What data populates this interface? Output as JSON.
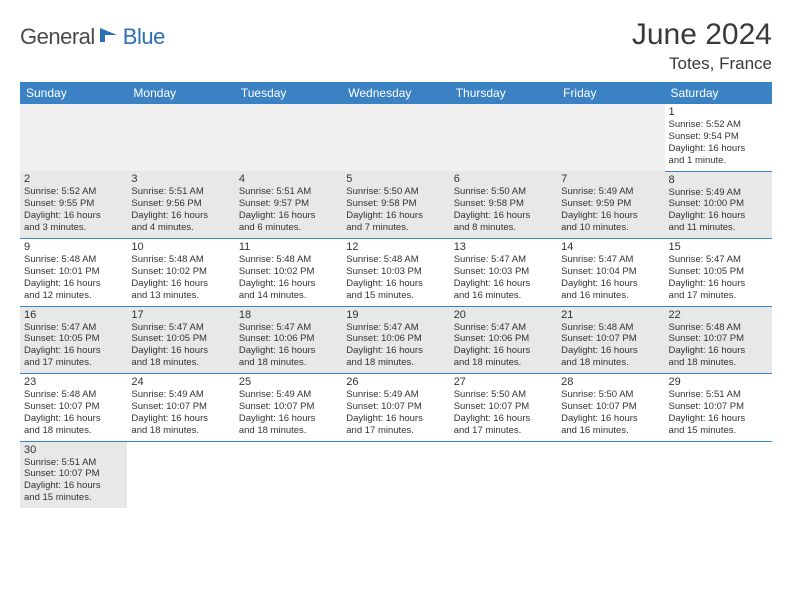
{
  "logo": {
    "part1": "General",
    "part2": "Blue"
  },
  "title": "June 2024",
  "location": "Totes, France",
  "weekdays": [
    "Sunday",
    "Monday",
    "Tuesday",
    "Wednesday",
    "Thursday",
    "Friday",
    "Saturday"
  ],
  "colors": {
    "header_bg": "#3b82c4",
    "header_text": "#ffffff",
    "gray_row": "#e8e8e8",
    "border": "#3b82c4",
    "logo_gray": "#4a4a4a",
    "logo_blue": "#2b6fb5"
  },
  "weeks": [
    [
      null,
      null,
      null,
      null,
      null,
      null,
      {
        "n": "1",
        "sr": "Sunrise: 5:52 AM",
        "ss": "Sunset: 9:54 PM",
        "dl1": "Daylight: 16 hours",
        "dl2": "and 1 minute."
      }
    ],
    [
      {
        "n": "2",
        "sr": "Sunrise: 5:52 AM",
        "ss": "Sunset: 9:55 PM",
        "dl1": "Daylight: 16 hours",
        "dl2": "and 3 minutes."
      },
      {
        "n": "3",
        "sr": "Sunrise: 5:51 AM",
        "ss": "Sunset: 9:56 PM",
        "dl1": "Daylight: 16 hours",
        "dl2": "and 4 minutes."
      },
      {
        "n": "4",
        "sr": "Sunrise: 5:51 AM",
        "ss": "Sunset: 9:57 PM",
        "dl1": "Daylight: 16 hours",
        "dl2": "and 6 minutes."
      },
      {
        "n": "5",
        "sr": "Sunrise: 5:50 AM",
        "ss": "Sunset: 9:58 PM",
        "dl1": "Daylight: 16 hours",
        "dl2": "and 7 minutes."
      },
      {
        "n": "6",
        "sr": "Sunrise: 5:50 AM",
        "ss": "Sunset: 9:58 PM",
        "dl1": "Daylight: 16 hours",
        "dl2": "and 8 minutes."
      },
      {
        "n": "7",
        "sr": "Sunrise: 5:49 AM",
        "ss": "Sunset: 9:59 PM",
        "dl1": "Daylight: 16 hours",
        "dl2": "and 10 minutes."
      },
      {
        "n": "8",
        "sr": "Sunrise: 5:49 AM",
        "ss": "Sunset: 10:00 PM",
        "dl1": "Daylight: 16 hours",
        "dl2": "and 11 minutes."
      }
    ],
    [
      {
        "n": "9",
        "sr": "Sunrise: 5:48 AM",
        "ss": "Sunset: 10:01 PM",
        "dl1": "Daylight: 16 hours",
        "dl2": "and 12 minutes."
      },
      {
        "n": "10",
        "sr": "Sunrise: 5:48 AM",
        "ss": "Sunset: 10:02 PM",
        "dl1": "Daylight: 16 hours",
        "dl2": "and 13 minutes."
      },
      {
        "n": "11",
        "sr": "Sunrise: 5:48 AM",
        "ss": "Sunset: 10:02 PM",
        "dl1": "Daylight: 16 hours",
        "dl2": "and 14 minutes."
      },
      {
        "n": "12",
        "sr": "Sunrise: 5:48 AM",
        "ss": "Sunset: 10:03 PM",
        "dl1": "Daylight: 16 hours",
        "dl2": "and 15 minutes."
      },
      {
        "n": "13",
        "sr": "Sunrise: 5:47 AM",
        "ss": "Sunset: 10:03 PM",
        "dl1": "Daylight: 16 hours",
        "dl2": "and 16 minutes."
      },
      {
        "n": "14",
        "sr": "Sunrise: 5:47 AM",
        "ss": "Sunset: 10:04 PM",
        "dl1": "Daylight: 16 hours",
        "dl2": "and 16 minutes."
      },
      {
        "n": "15",
        "sr": "Sunrise: 5:47 AM",
        "ss": "Sunset: 10:05 PM",
        "dl1": "Daylight: 16 hours",
        "dl2": "and 17 minutes."
      }
    ],
    [
      {
        "n": "16",
        "sr": "Sunrise: 5:47 AM",
        "ss": "Sunset: 10:05 PM",
        "dl1": "Daylight: 16 hours",
        "dl2": "and 17 minutes."
      },
      {
        "n": "17",
        "sr": "Sunrise: 5:47 AM",
        "ss": "Sunset: 10:05 PM",
        "dl1": "Daylight: 16 hours",
        "dl2": "and 18 minutes."
      },
      {
        "n": "18",
        "sr": "Sunrise: 5:47 AM",
        "ss": "Sunset: 10:06 PM",
        "dl1": "Daylight: 16 hours",
        "dl2": "and 18 minutes."
      },
      {
        "n": "19",
        "sr": "Sunrise: 5:47 AM",
        "ss": "Sunset: 10:06 PM",
        "dl1": "Daylight: 16 hours",
        "dl2": "and 18 minutes."
      },
      {
        "n": "20",
        "sr": "Sunrise: 5:47 AM",
        "ss": "Sunset: 10:06 PM",
        "dl1": "Daylight: 16 hours",
        "dl2": "and 18 minutes."
      },
      {
        "n": "21",
        "sr": "Sunrise: 5:48 AM",
        "ss": "Sunset: 10:07 PM",
        "dl1": "Daylight: 16 hours",
        "dl2": "and 18 minutes."
      },
      {
        "n": "22",
        "sr": "Sunrise: 5:48 AM",
        "ss": "Sunset: 10:07 PM",
        "dl1": "Daylight: 16 hours",
        "dl2": "and 18 minutes."
      }
    ],
    [
      {
        "n": "23",
        "sr": "Sunrise: 5:48 AM",
        "ss": "Sunset: 10:07 PM",
        "dl1": "Daylight: 16 hours",
        "dl2": "and 18 minutes."
      },
      {
        "n": "24",
        "sr": "Sunrise: 5:49 AM",
        "ss": "Sunset: 10:07 PM",
        "dl1": "Daylight: 16 hours",
        "dl2": "and 18 minutes."
      },
      {
        "n": "25",
        "sr": "Sunrise: 5:49 AM",
        "ss": "Sunset: 10:07 PM",
        "dl1": "Daylight: 16 hours",
        "dl2": "and 18 minutes."
      },
      {
        "n": "26",
        "sr": "Sunrise: 5:49 AM",
        "ss": "Sunset: 10:07 PM",
        "dl1": "Daylight: 16 hours",
        "dl2": "and 17 minutes."
      },
      {
        "n": "27",
        "sr": "Sunrise: 5:50 AM",
        "ss": "Sunset: 10:07 PM",
        "dl1": "Daylight: 16 hours",
        "dl2": "and 17 minutes."
      },
      {
        "n": "28",
        "sr": "Sunrise: 5:50 AM",
        "ss": "Sunset: 10:07 PM",
        "dl1": "Daylight: 16 hours",
        "dl2": "and 16 minutes."
      },
      {
        "n": "29",
        "sr": "Sunrise: 5:51 AM",
        "ss": "Sunset: 10:07 PM",
        "dl1": "Daylight: 16 hours",
        "dl2": "and 15 minutes."
      }
    ],
    [
      {
        "n": "30",
        "sr": "Sunrise: 5:51 AM",
        "ss": "Sunset: 10:07 PM",
        "dl1": "Daylight: 16 hours",
        "dl2": "and 15 minutes."
      },
      null,
      null,
      null,
      null,
      null,
      null
    ]
  ]
}
